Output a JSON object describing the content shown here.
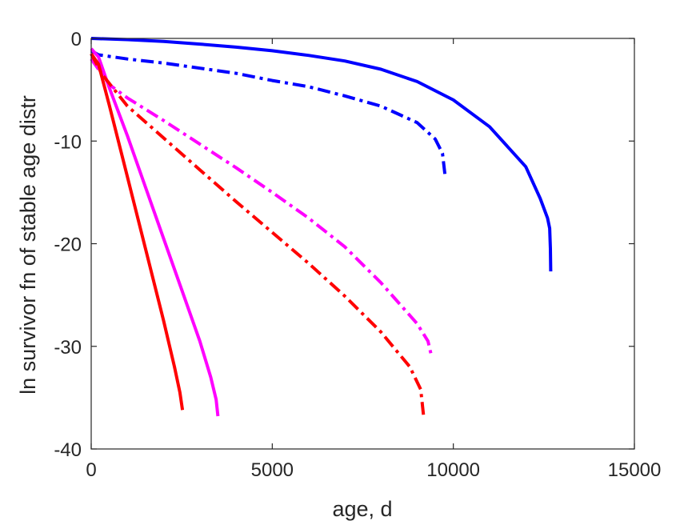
{
  "chart_data": {
    "type": "line",
    "xlabel": "age, d",
    "ylabel": "ln survivor fn of stable age distr",
    "xlim": [
      0,
      15000
    ],
    "ylim": [
      -40,
      0
    ],
    "xticks": [
      0,
      5000,
      10000,
      15000
    ],
    "yticks": [
      0,
      -10,
      -20,
      -30,
      -40
    ],
    "xtick_labels": [
      "0",
      "5000",
      "10000",
      "15000"
    ],
    "ytick_labels": [
      "0",
      "-10",
      "-20",
      "-30",
      "-40"
    ],
    "grid": false,
    "series": [
      {
        "color": "#0000ff",
        "style": "solid",
        "points": [
          [
            0,
            0
          ],
          [
            1000,
            -0.12
          ],
          [
            2000,
            -0.3
          ],
          [
            3000,
            -0.55
          ],
          [
            4000,
            -0.85
          ],
          [
            5000,
            -1.2
          ],
          [
            6000,
            -1.65
          ],
          [
            7000,
            -2.2
          ],
          [
            8000,
            -3.0
          ],
          [
            9000,
            -4.2
          ],
          [
            10000,
            -6.0
          ],
          [
            11000,
            -8.6
          ],
          [
            12000,
            -12.5
          ],
          [
            12400,
            -15.6
          ],
          [
            12600,
            -17.5
          ],
          [
            12660,
            -18.5
          ],
          [
            12680,
            -20.5
          ],
          [
            12690,
            -22.7
          ]
        ]
      },
      {
        "color": "#0000ff",
        "style": "dashdot",
        "points": [
          [
            0,
            -1.2
          ],
          [
            200,
            -1.6
          ],
          [
            1000,
            -2.0
          ],
          [
            2000,
            -2.4
          ],
          [
            3000,
            -2.9
          ],
          [
            4000,
            -3.4
          ],
          [
            5000,
            -4.1
          ],
          [
            6000,
            -4.7
          ],
          [
            7000,
            -5.6
          ],
          [
            8000,
            -6.6
          ],
          [
            9000,
            -8.2
          ],
          [
            9500,
            -9.8
          ],
          [
            9700,
            -11.2
          ],
          [
            9780,
            -13.6
          ]
        ]
      },
      {
        "color": "#ff00ff",
        "style": "solid",
        "points": [
          [
            0,
            -1.0
          ],
          [
            200,
            -1.8
          ],
          [
            500,
            -4.8
          ],
          [
            1000,
            -9.5
          ],
          [
            1500,
            -14.5
          ],
          [
            2000,
            -19.5
          ],
          [
            2500,
            -24.5
          ],
          [
            3000,
            -29.5
          ],
          [
            3300,
            -33.0
          ],
          [
            3450,
            -35.2
          ],
          [
            3500,
            -36.8
          ]
        ]
      },
      {
        "color": "#ff00ff",
        "style": "dashdot",
        "points": [
          [
            0,
            -2.0
          ],
          [
            500,
            -4.5
          ],
          [
            1000,
            -5.8
          ],
          [
            2000,
            -8.0
          ],
          [
            3000,
            -10.3
          ],
          [
            4000,
            -12.6
          ],
          [
            5000,
            -15.0
          ],
          [
            6000,
            -17.5
          ],
          [
            7000,
            -20.3
          ],
          [
            8000,
            -23.8
          ],
          [
            9000,
            -27.8
          ],
          [
            9300,
            -29.5
          ],
          [
            9400,
            -31.0
          ]
        ]
      },
      {
        "color": "#ff0000",
        "style": "solid",
        "points": [
          [
            0,
            -1.5
          ],
          [
            200,
            -2.5
          ],
          [
            500,
            -6.5
          ],
          [
            1000,
            -13.5
          ],
          [
            1500,
            -20.5
          ],
          [
            2000,
            -27.5
          ],
          [
            2300,
            -32.0
          ],
          [
            2450,
            -34.5
          ],
          [
            2520,
            -36.2
          ]
        ]
      },
      {
        "color": "#ff0000",
        "style": "dashdot",
        "points": [
          [
            0,
            -1.5
          ],
          [
            300,
            -3.5
          ],
          [
            1000,
            -6.6
          ],
          [
            2000,
            -9.7
          ],
          [
            3000,
            -12.8
          ],
          [
            4000,
            -15.9
          ],
          [
            5000,
            -18.9
          ],
          [
            6000,
            -21.9
          ],
          [
            7000,
            -25.1
          ],
          [
            8000,
            -28.6
          ],
          [
            8800,
            -32.0
          ],
          [
            9100,
            -34.2
          ],
          [
            9180,
            -36.8
          ]
        ]
      }
    ]
  }
}
